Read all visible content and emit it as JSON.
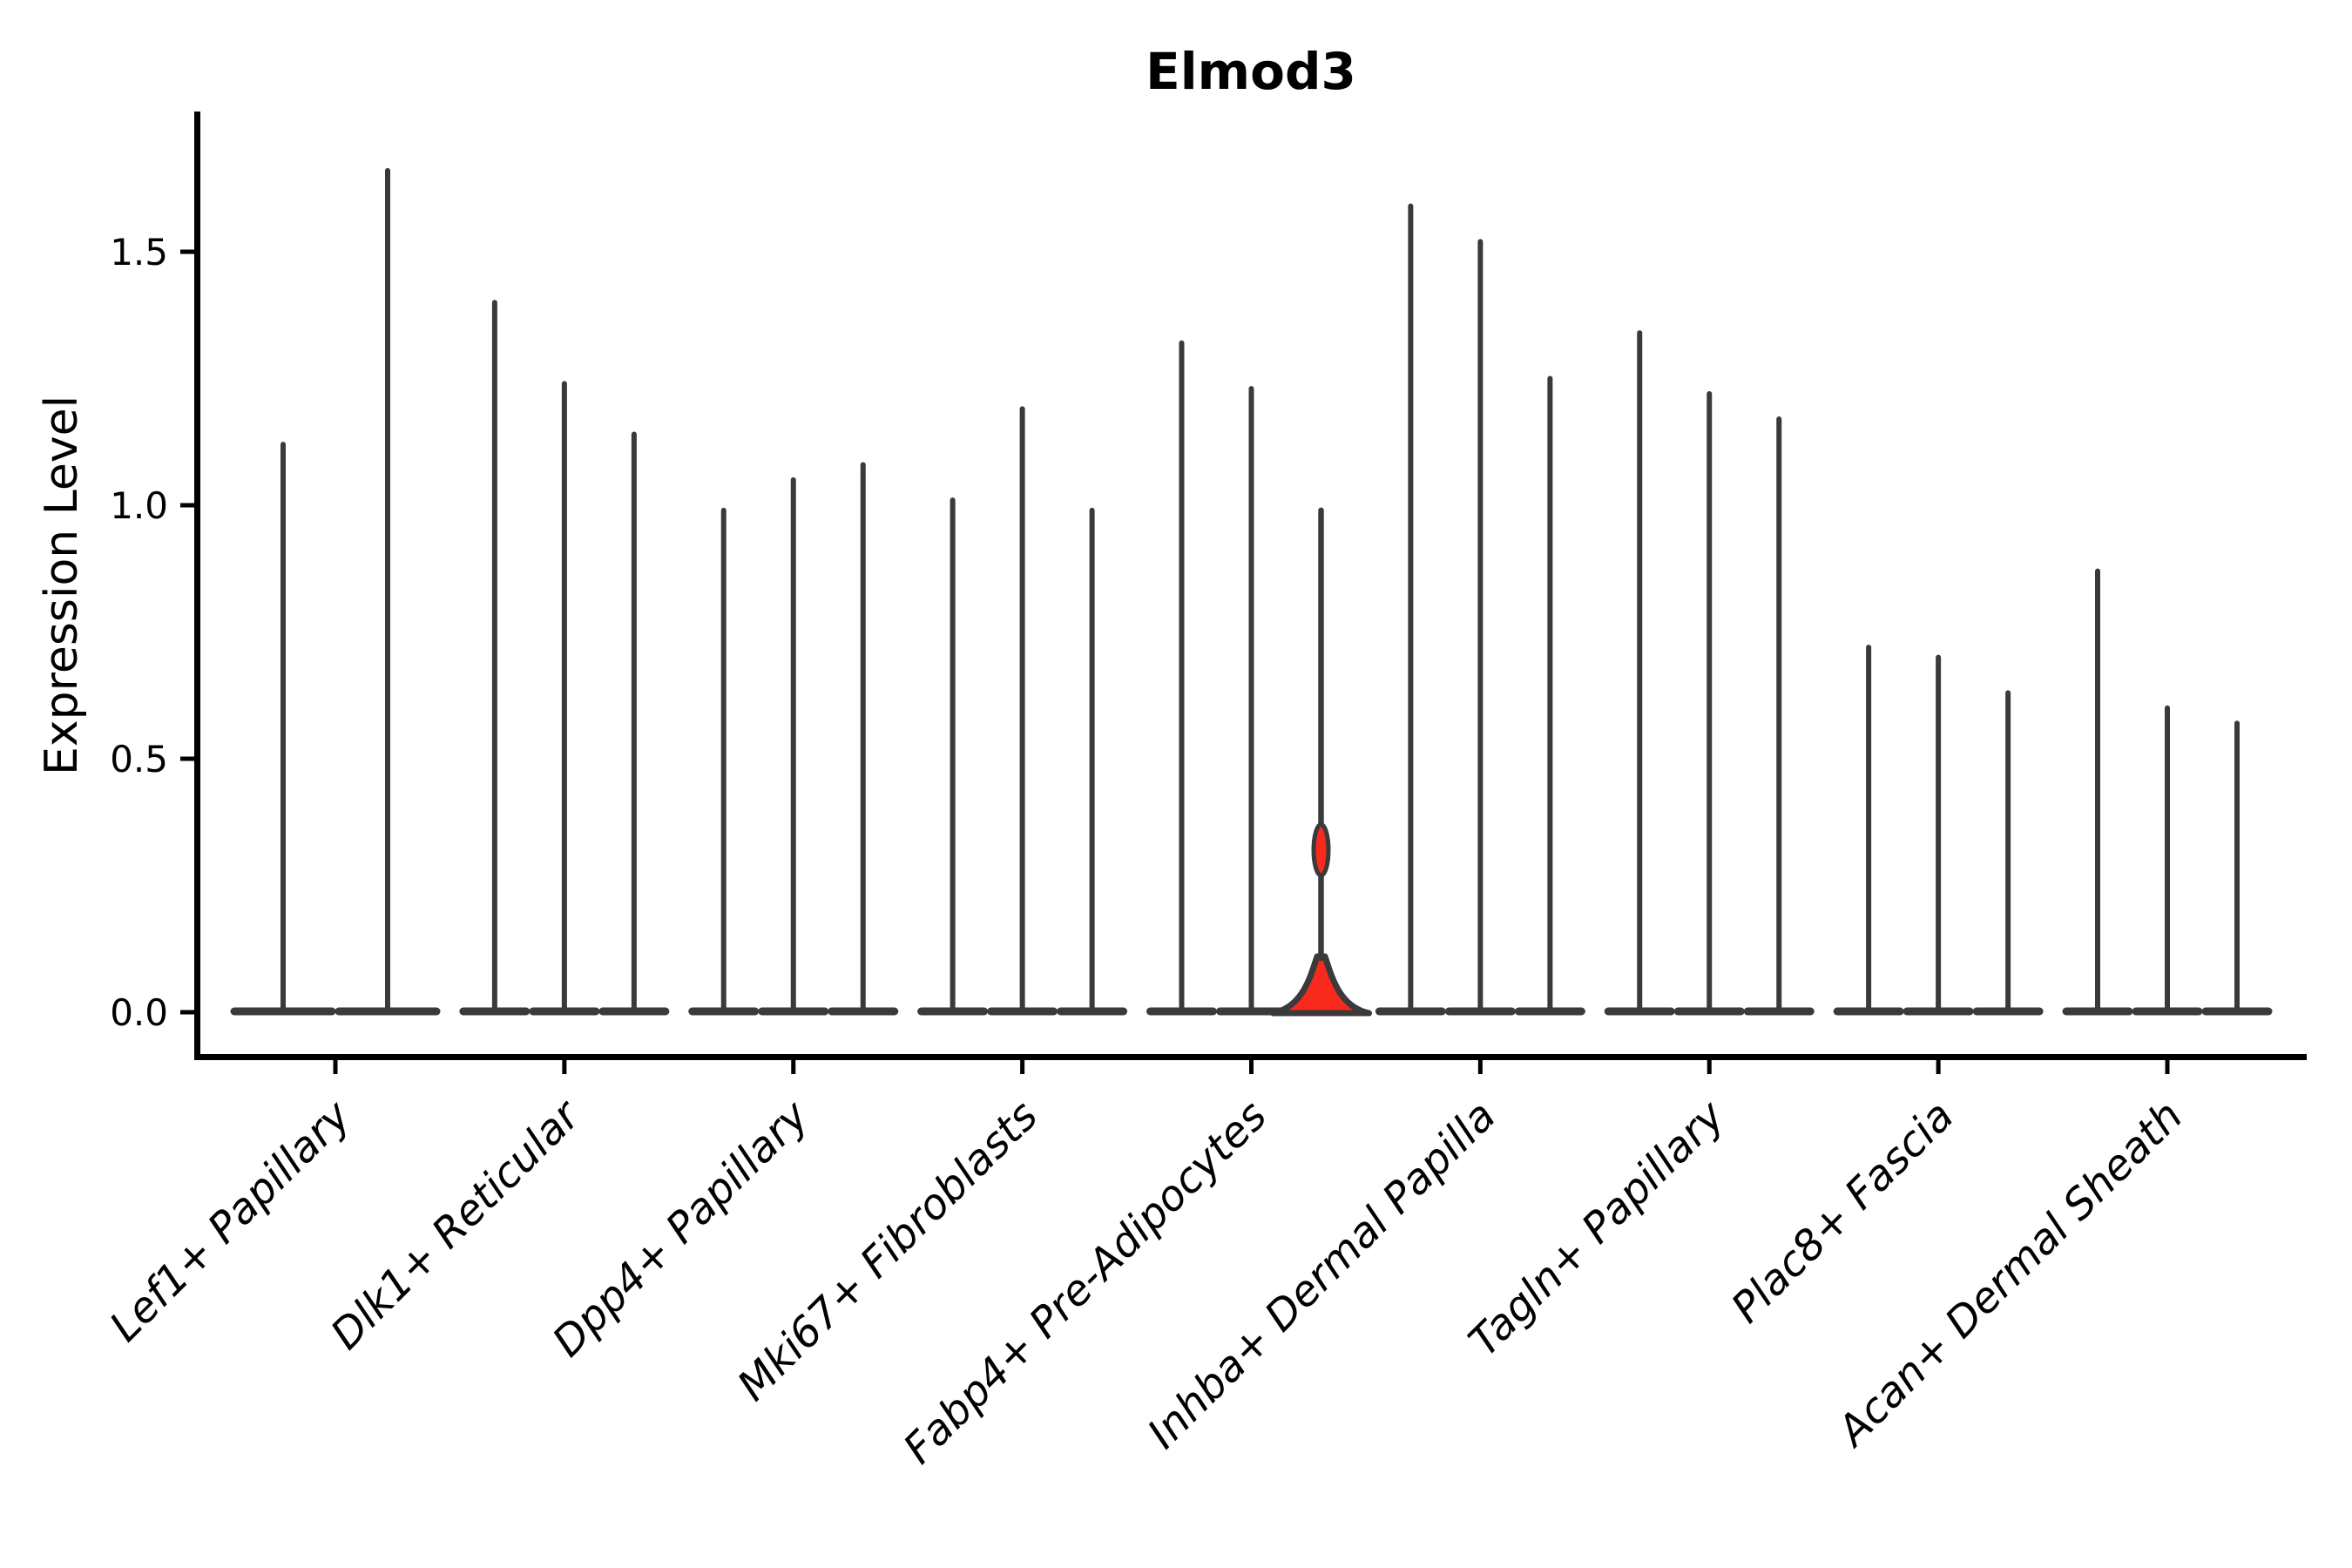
{
  "chart_data": {
    "type": "violin",
    "title": "Elmod3",
    "ylabel": "Expression Level",
    "xlabel": "",
    "ylim": [
      -0.05,
      1.78
    ],
    "yticks": [
      0.0,
      0.5,
      1.0,
      1.5
    ],
    "ytick_labels": [
      "0.0",
      "0.5",
      "1.0",
      "1.5"
    ],
    "grid": false,
    "legend": "none",
    "colors": {
      "violin_outline": "#3A3A3A",
      "axis": "#000000",
      "text": "#000000",
      "highlight_fill": "#F82A1E",
      "background": "#FFFFFF"
    },
    "categories": [
      "Lef1+ Papillary",
      "Dlk1+ Reticular",
      "Dpp4+ Papillary",
      "Mki67+ Fibroblasts",
      "Fabp4+ Pre-Adipocytes",
      "Inhba+ Dermal Papilla",
      "Tagln+ Papillary",
      "Plac8+ Fascia",
      "Acan+ Dermal Sheath"
    ],
    "groups": [
      {
        "label": "Lef1+ Papillary",
        "violin_max_expression": [
          1.12,
          1.66
        ]
      },
      {
        "label": "Dlk1+ Reticular",
        "violin_max_expression": [
          1.4,
          1.24,
          1.14
        ]
      },
      {
        "label": "Dpp4+ Papillary",
        "violin_max_expression": [
          0.99,
          1.05,
          1.08
        ]
      },
      {
        "label": "Mki67+ Fibroblasts",
        "violin_max_expression": [
          1.01,
          1.19,
          0.99
        ]
      },
      {
        "label": "Fabp4+ Pre-Adipocytes",
        "violin_max_expression": [
          1.32,
          1.23,
          0.99
        ],
        "highlight_violin_index": 2
      },
      {
        "label": "Inhba+ Dermal Papilla",
        "violin_max_expression": [
          1.59,
          1.52,
          1.25
        ]
      },
      {
        "label": "Tagln+ Papillary",
        "violin_max_expression": [
          1.34,
          1.22,
          1.17
        ]
      },
      {
        "label": "Plac8+ Fascia",
        "violin_max_expression": [
          0.72,
          0.7,
          0.63
        ]
      },
      {
        "label": "Acan+ Dermal Sheath",
        "violin_max_expression": [
          0.87,
          0.6,
          0.57
        ]
      }
    ],
    "highlight_violin": {
      "group": "Fabp4+ Pre-Adipocytes",
      "position_in_group": 3,
      "fill": "#F82A1E",
      "max_expression": 0.99,
      "base_bulge_top_expression": 0.11,
      "mid_bulge_center_expression": 0.32,
      "mid_bulge_half_height_expression": 0.05
    }
  }
}
